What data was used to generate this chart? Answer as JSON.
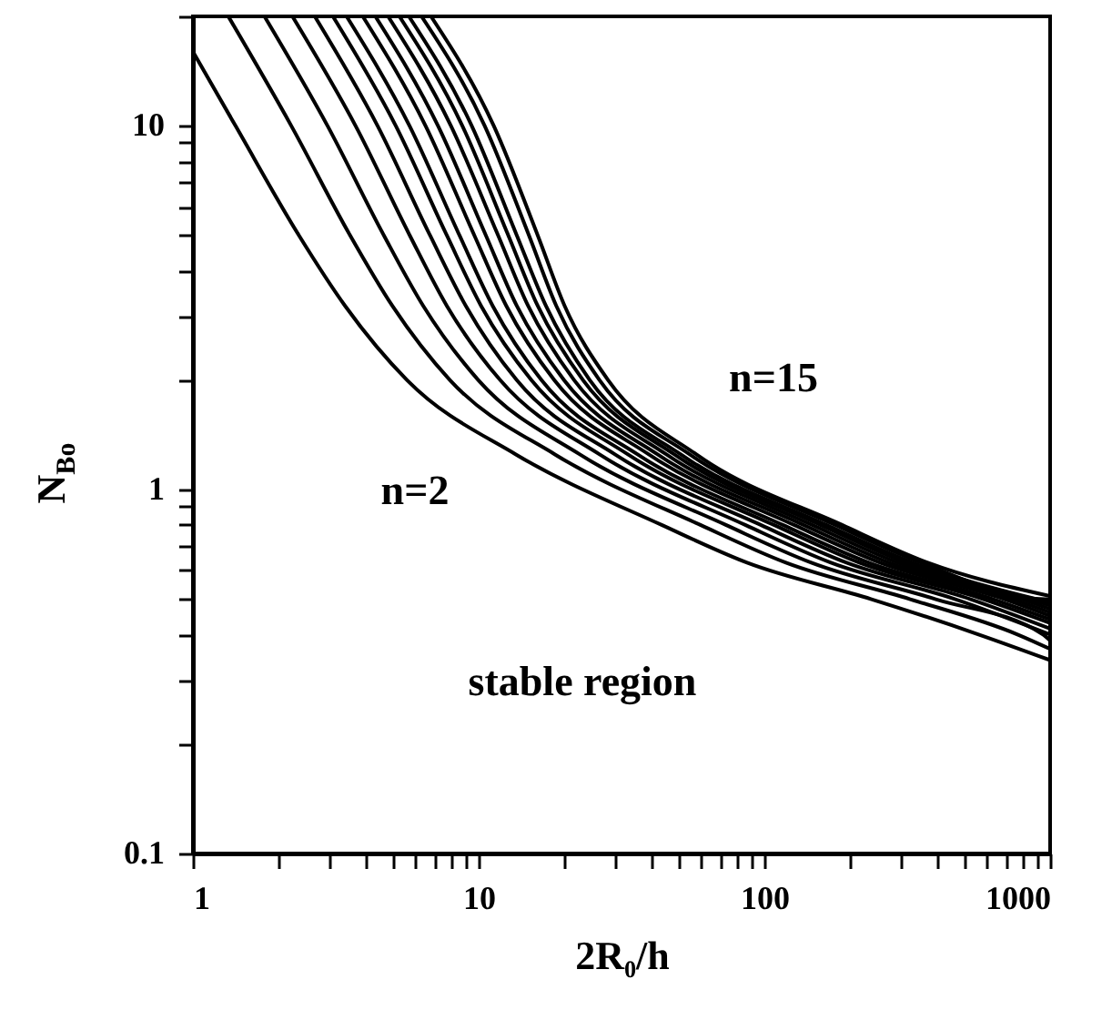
{
  "chart_data": {
    "type": "line",
    "xlabel": "2R₀/h",
    "ylabel": "N$_{Bo}$",
    "log": "xy",
    "grid": false,
    "marker": "none",
    "line_style": "solid",
    "xlim": [
      1,
      1000
    ],
    "ylim": [
      0.1,
      20
    ],
    "xticks": [
      1,
      {
        "value": 2,
        "label": null
      },
      {
        "value": 3,
        "label": null
      },
      {
        "value": 4,
        "label": null
      },
      {
        "value": 5,
        "label": null
      },
      {
        "value": 6,
        "label": null
      },
      {
        "value": 7,
        "label": null
      },
      {
        "value": 8,
        "label": null
      },
      {
        "value": 9,
        "label": null
      },
      10,
      {
        "value": 20,
        "label": null
      },
      {
        "value": 30,
        "label": null
      },
      {
        "value": 40,
        "label": null
      },
      {
        "value": 50,
        "label": null
      },
      {
        "value": 60,
        "label": null
      },
      {
        "value": 70,
        "label": null
      },
      {
        "value": 80,
        "label": null
      },
      {
        "value": 90,
        "label": null
      },
      100,
      {
        "value": 200,
        "label": null
      },
      {
        "value": 300,
        "label": null
      },
      {
        "value": 400,
        "label": null
      },
      {
        "value": 500,
        "label": null
      },
      {
        "value": 600,
        "label": null
      },
      {
        "value": 700,
        "label": null
      },
      {
        "value": 800,
        "label": null
      },
      {
        "value": 900,
        "label": null
      },
      1000
    ],
    "yticks": [
      0.1,
      {
        "value": 0.2,
        "label": null
      },
      {
        "value": 0.3,
        "label": null
      },
      {
        "value": 0.4,
        "label": null
      },
      {
        "value": 0.5,
        "label": null
      },
      {
        "value": 0.6,
        "label": null
      },
      {
        "value": 0.7,
        "label": null
      },
      {
        "value": 0.8,
        "label": null
      },
      {
        "value": 0.9,
        "label": null
      },
      1,
      {
        "value": 2,
        "label": null
      },
      {
        "value": 3,
        "label": null
      },
      {
        "value": 4,
        "label": null
      },
      {
        "value": 5,
        "label": null
      },
      {
        "value": 6,
        "label": null
      },
      {
        "value": 7,
        "label": null
      },
      {
        "value": 8,
        "label": null
      },
      {
        "value": 9,
        "label": null
      },
      10,
      {
        "value": 20,
        "label": null
      }
    ],
    "series": [
      {
        "color": "#000000",
        "x": [
          1,
          1.41,
          2.35,
          3.41,
          5.62,
          13.5,
          43.7,
          87,
          237,
          562,
          1000
        ],
        "values": [
          16,
          10,
          5,
          3.2,
          2,
          1.25,
          0.8,
          0.63,
          0.5,
          0.4,
          0.34
        ]
      },
      {
        "color": "#000000",
        "x": [
          1.33,
          2.21,
          3.55,
          4.99,
          7.94,
          18.5,
          59.7,
          119,
          324,
          769,
          1000
        ],
        "values": [
          20,
          10,
          5,
          3.2,
          2,
          1.25,
          0.8,
          0.63,
          0.5,
          0.4,
          0.365
        ]
      },
      {
        "color": "#000000",
        "x": [
          1.78,
          2.96,
          4.66,
          6.4,
          9.98,
          22.6,
          73.3,
          146,
          398,
          944,
          1000
        ],
        "values": [
          20,
          10,
          5,
          3.2,
          2,
          1.25,
          0.8,
          0.63,
          0.5,
          0.4,
          0.385
        ]
      },
      {
        "color": "#000000",
        "x": [
          2.23,
          3.71,
          5.74,
          7.74,
          11.9,
          26.5,
          85.7,
          171,
          466,
          1000
        ],
        "values": [
          20,
          10,
          5,
          3.2,
          2,
          1.25,
          0.8,
          0.63,
          0.5,
          0.4
        ]
      },
      {
        "color": "#000000",
        "x": [
          2.67,
          4.43,
          6.76,
          9.02,
          13.6,
          30,
          97.1,
          194,
          527,
          1000
        ],
        "values": [
          20,
          10,
          5,
          3.2,
          2,
          1.25,
          0.8,
          0.63,
          0.5,
          0.415
        ]
      },
      {
        "color": "#000000",
        "x": [
          3.09,
          5.13,
          7.74,
          10.2,
          15.3,
          33.3,
          108,
          215,
          585,
          1000
        ],
        "values": [
          20,
          10,
          5,
          3.2,
          2,
          1.25,
          0.8,
          0.63,
          0.5,
          0.43
        ]
      },
      {
        "color": "#000000",
        "x": [
          3.45,
          5.73,
          8.57,
          11.2,
          16.6,
          36,
          116,
          232,
          632,
          1000
        ],
        "values": [
          20,
          10,
          5,
          3.2,
          2,
          1.25,
          0.8,
          0.63,
          0.5,
          0.44
        ]
      },
      {
        "color": "#000000",
        "x": [
          3.93,
          6.52,
          9.66,
          12.5,
          18.4,
          39.4,
          127,
          254,
          692,
          1000
        ],
        "values": [
          20,
          10,
          5,
          3.2,
          2,
          1.25,
          0.8,
          0.63,
          0.5,
          0.45
        ]
      },
      {
        "color": "#000000",
        "x": [
          4.35,
          7.21,
          10.6,
          13.6,
          19.9,
          42.3,
          137,
          273,
          743,
          1000
        ],
        "values": [
          20,
          10,
          5,
          3.2,
          2,
          1.25,
          0.8,
          0.63,
          0.5,
          0.46
        ]
      },
      {
        "color": "#000000",
        "x": [
          4.82,
          8,
          11.7,
          14.9,
          21.6,
          45.4,
          147,
          293,
          798,
          1000
        ],
        "values": [
          20,
          10,
          5,
          3.2,
          2,
          1.25,
          0.8,
          0.63,
          0.5,
          0.47
        ]
      },
      {
        "color": "#000000",
        "x": [
          5.28,
          8.77,
          12.7,
          16.1,
          23.2,
          48.4,
          157,
          313,
          851,
          1000
        ],
        "values": [
          20,
          10,
          5,
          3.2,
          2,
          1.25,
          0.8,
          0.63,
          0.5,
          0.48
        ]
      },
      {
        "color": "#000000",
        "x": [
          5.7,
          9.46,
          13.6,
          17.2,
          24.5,
          51,
          165,
          330,
          897,
          1000
        ],
        "values": [
          20,
          10,
          5,
          3.2,
          2,
          1.25,
          0.8,
          0.63,
          0.5,
          0.49
        ]
      },
      {
        "color": "#000000",
        "x": [
          6.31,
          10.5,
          15,
          18.7,
          26.5,
          54.8,
          177,
          354,
          964,
          1000
        ],
        "values": [
          20,
          10,
          5,
          3.2,
          2,
          1.25,
          0.8,
          0.63,
          0.5,
          0.5
        ]
      },
      {
        "color": "#000000",
        "x": [
          6.81,
          11.3,
          16.1,
          20,
          28.4,
          57.8,
          187,
          373,
          1000
        ],
        "values": [
          20,
          10,
          5,
          3.2,
          2,
          1.25,
          0.8,
          0.63,
          0.51
        ]
      }
    ],
    "annotations": [
      "n=15",
      "n=2",
      "stable region"
    ]
  }
}
